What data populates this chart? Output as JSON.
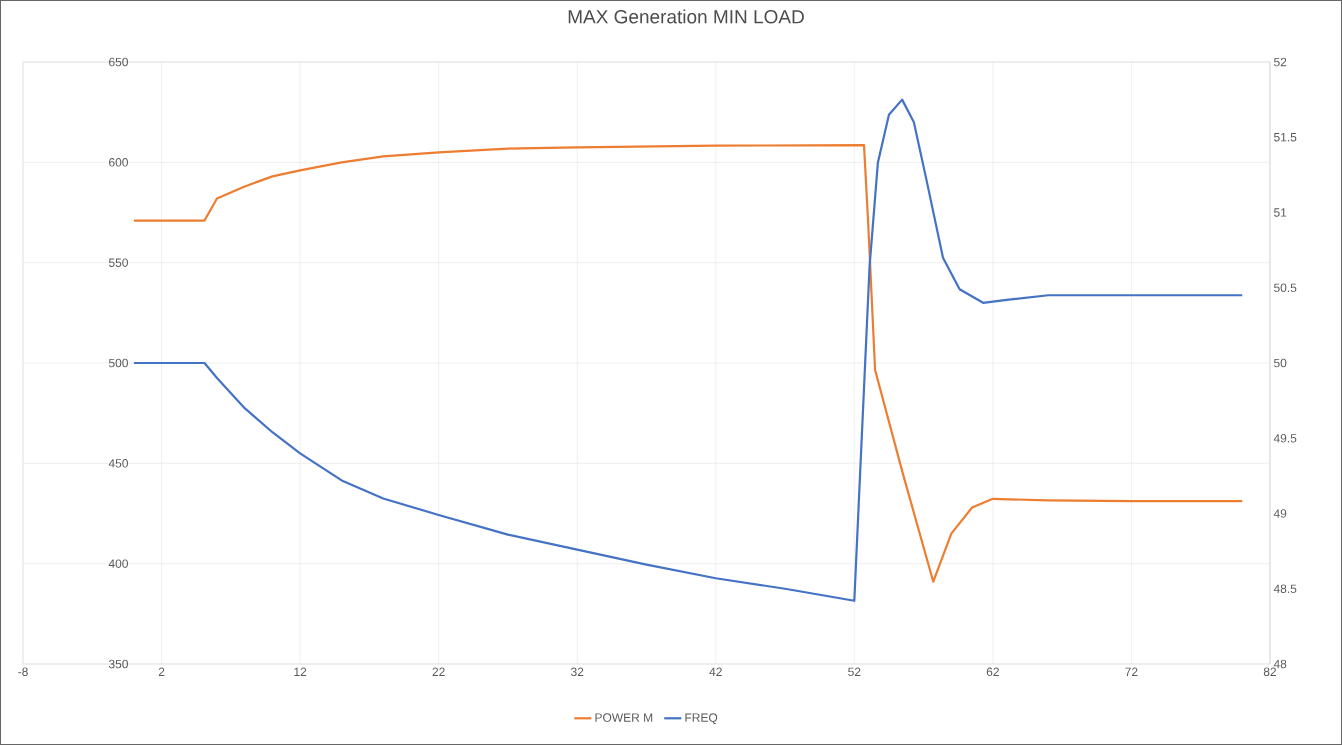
{
  "chart_data": {
    "type": "line",
    "title": "MAX Generation MIN LOAD",
    "xlim": [
      -8,
      82
    ],
    "xticks": [
      -8,
      2,
      12,
      22,
      32,
      42,
      52,
      62,
      72,
      82
    ],
    "ylim": [
      350,
      650
    ],
    "yticks": [
      350,
      400,
      450,
      500,
      550,
      600,
      650
    ],
    "y2lim": [
      48,
      52
    ],
    "y2ticks": [
      48,
      48.5,
      49,
      49.5,
      50,
      50.5,
      51,
      51.5,
      52
    ],
    "grid": true,
    "legend": "bottom",
    "marker": "none",
    "line_style": "solid",
    "series": [
      {
        "name": "POWER M",
        "color": "#ed7d31",
        "x": [
          0,
          5.1,
          6.0,
          8,
          10,
          12,
          15,
          18,
          22,
          27,
          32,
          42,
          52.7,
          53.0,
          53.5,
          55.5,
          57.7,
          59,
          60.5,
          62,
          66,
          72,
          80
        ],
        "values": [
          571,
          571,
          582,
          588,
          593,
          596,
          600,
          603,
          605,
          606.8,
          607.5,
          608.3,
          608.6,
          570,
          496.5,
          445,
          391,
          415,
          428,
          432.3,
          431.5,
          431.2,
          431.2
        ]
      },
      {
        "name": "FREQ",
        "color": "#4472c4",
        "axis": "y2",
        "x": [
          0,
          5.1,
          6,
          8,
          10,
          12,
          15,
          18,
          22,
          27,
          32,
          37,
          42,
          47,
          52,
          53.1,
          53.7,
          54.5,
          55.45,
          56.3,
          57.2,
          58.4,
          59.6,
          61.3,
          63,
          66,
          72,
          80
        ],
        "values": [
          50,
          50,
          49.9,
          49.7,
          49.54,
          49.4,
          49.22,
          49.1,
          48.99,
          48.86,
          48.76,
          48.66,
          48.57,
          48.5,
          48.42,
          50.64,
          51.33,
          51.65,
          51.75,
          51.6,
          51.22,
          50.7,
          50.49,
          50.4,
          50.42,
          50.45,
          50.45,
          50.45
        ]
      }
    ]
  }
}
